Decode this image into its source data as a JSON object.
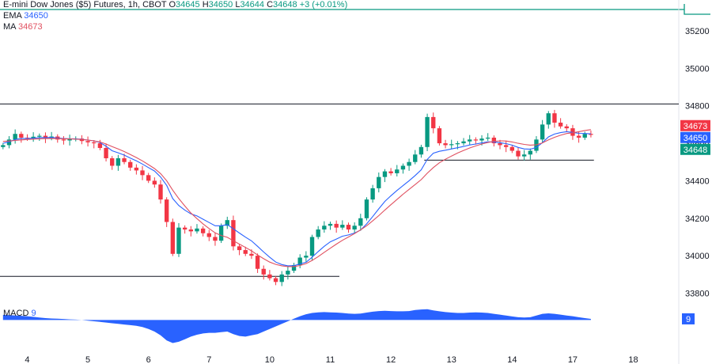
{
  "header": {
    "symbol": "E-mini Dow Jones ($5) Futures, 1h, CBOT",
    "o_label": "O",
    "o_value": "34645",
    "h_label": "H",
    "h_value": "34650",
    "l_label": "L",
    "l_value": "34644",
    "c_label": "C",
    "c_value": "34648",
    "change": "+3 (+0.01%)",
    "ema_label": "EMA",
    "ema_value": "34650",
    "ma_label": "MA",
    "ma_value": "34673",
    "macd_label": "MACD",
    "macd_value": "9"
  },
  "colors": {
    "up": "#089981",
    "down": "#f23645",
    "ema": "#2962ff",
    "ma": "#e05060",
    "macd_fill": "#2962ff",
    "price_line": "#089981",
    "axis_text": "#131722"
  },
  "chart_data": {
    "type": "candlestick",
    "ylim": [
      33760,
      35280
    ],
    "y_ticks": [
      33800,
      34000,
      34200,
      34400,
      34600,
      34800,
      35000,
      35200
    ],
    "x_ticks": [
      {
        "label": "4",
        "bar": 4
      },
      {
        "label": "5",
        "bar": 14
      },
      {
        "label": "6",
        "bar": 24
      },
      {
        "label": "7",
        "bar": 34
      },
      {
        "label": "10",
        "bar": 44
      },
      {
        "label": "11",
        "bar": 54
      },
      {
        "label": "12",
        "bar": 64
      },
      {
        "label": "13",
        "bar": 74
      },
      {
        "label": "14",
        "bar": 84
      },
      {
        "label": "17",
        "bar": 94
      },
      {
        "label": "18",
        "bar": 104
      }
    ],
    "bar_count": 112,
    "candles_close": [
      34590,
      34620,
      34650,
      34630,
      34625,
      34635,
      34640,
      34628,
      34636,
      34620,
      34615,
      34622,
      34625,
      34612,
      34605,
      34600,
      34575,
      34520,
      34480,
      34520,
      34500,
      34470,
      34455,
      34430,
      34400,
      34380,
      34300,
      34180,
      34010,
      34150,
      34140,
      34130,
      34145,
      34120,
      34100,
      34080,
      34160,
      34190,
      34050,
      34030,
      34010,
      34000,
      33930,
      33900,
      33880,
      33860,
      33900,
      33920,
      33950,
      33990,
      34000,
      34100,
      34140,
      34160,
      34170,
      34150,
      34165,
      34140,
      34160,
      34200,
      34300,
      34360,
      34420,
      34450,
      34440,
      34460,
      34480,
      34500,
      34540,
      34580,
      34740,
      34680,
      34600,
      34590,
      34595,
      34600,
      34610,
      34620,
      34615,
      34625,
      34630,
      34600,
      34590,
      34580,
      34560,
      34530,
      34540,
      34560,
      34620,
      34700,
      34760,
      34710,
      34690,
      34680,
      34640,
      34630,
      34650,
      34648
    ],
    "series": [
      {
        "name": "EMA",
        "values": [
          34600,
          34608,
          34620,
          34625,
          34625,
          34627,
          34630,
          34630,
          34631,
          34628,
          34625,
          34624,
          34624,
          34621,
          34617,
          34613,
          34604,
          34584,
          34560,
          34549,
          34537,
          34521,
          34506,
          34489,
          34470,
          34452,
          34420,
          34375,
          34305,
          34268,
          34243,
          34223,
          34212,
          34195,
          34177,
          34160,
          34160,
          34166,
          34144,
          34121,
          34099,
          34079,
          34050,
          34020,
          33992,
          33966,
          33953,
          33946,
          33947,
          33956,
          33965,
          33992,
          34022,
          34050,
          34074,
          34089,
          34104,
          34111,
          34121,
          34137,
          34170,
          34209,
          34250,
          34290,
          34320,
          34348,
          34374,
          34400,
          34428,
          34458,
          34514,
          34547,
          34557,
          34563,
          34570,
          34576,
          34583,
          34591,
          34596,
          34602,
          34608,
          34606,
          34603,
          34598,
          34590,
          34578,
          34570,
          34568,
          34578,
          34603,
          34634,
          34649,
          34657,
          34662,
          34658,
          34653,
          34652,
          34650
        ]
      },
      {
        "name": "MA",
        "values": [
          34610,
          34612,
          34615,
          34618,
          34620,
          34622,
          34624,
          34625,
          34626,
          34625,
          34624,
          34623,
          34622,
          34620,
          34617,
          34613,
          34607,
          34596,
          34582,
          34570,
          34556,
          34540,
          34524,
          34506,
          34486,
          34465,
          34438,
          34400,
          34350,
          34305,
          34265,
          34228,
          34198,
          34170,
          34145,
          34122,
          34108,
          34098,
          34080,
          34062,
          34044,
          34026,
          34004,
          33984,
          33966,
          33954,
          33946,
          33942,
          33942,
          33948,
          33958,
          33975,
          33995,
          34018,
          34040,
          34062,
          34082,
          34100,
          34118,
          34138,
          34160,
          34186,
          34214,
          34244,
          34272,
          34300,
          34328,
          34354,
          34380,
          34406,
          34440,
          34470,
          34496,
          34515,
          34532,
          34548,
          34562,
          34575,
          34586,
          34596,
          34604,
          34610,
          34613,
          34612,
          34607,
          34600,
          34594,
          34590,
          34592,
          34602,
          34618,
          34632,
          34643,
          34652,
          34656,
          34662,
          34668,
          34673
        ]
      }
    ],
    "macd": [
      40,
      38,
      36,
      33,
      30,
      25,
      20,
      15,
      12,
      10,
      8,
      5,
      3,
      0,
      -5,
      -10,
      -15,
      -20,
      -25,
      -30,
      -35,
      -40,
      -45,
      -55,
      -70,
      -90,
      -120,
      -160,
      -180,
      -170,
      -150,
      -130,
      -115,
      -105,
      -100,
      -100,
      -95,
      -90,
      -110,
      -125,
      -130,
      -120,
      -110,
      -90,
      -70,
      -50,
      -30,
      -10,
      10,
      30,
      45,
      55,
      60,
      62,
      60,
      58,
      55,
      50,
      48,
      50,
      58,
      65,
      70,
      72,
      70,
      68,
      68,
      70,
      78,
      82,
      85,
      75,
      68,
      62,
      58,
      55,
      55,
      58,
      60,
      58,
      55,
      48,
      42,
      35,
      28,
      22,
      20,
      22,
      35,
      48,
      52,
      48,
      42,
      35,
      30,
      22,
      15,
      9
    ],
    "macd_ylim": [
      -220,
      120
    ],
    "support_lines": [
      {
        "value": 34810,
        "from_bar": 0,
        "to_bar": 112
      },
      {
        "value": 33890,
        "from_bar": 0,
        "to_bar": 56
      },
      {
        "value": 34510,
        "from_bar": 70,
        "to_bar": 98
      }
    ],
    "price_tags": [
      {
        "label": "34673",
        "value": 34673,
        "color": "#f23645"
      },
      {
        "label": "34650",
        "value": 34650,
        "color": "#2962ff"
      },
      {
        "label": "34648",
        "value": 34648,
        "color": "#089981"
      }
    ],
    "macd_tag": {
      "label": "9",
      "color": "#2962ff"
    }
  }
}
